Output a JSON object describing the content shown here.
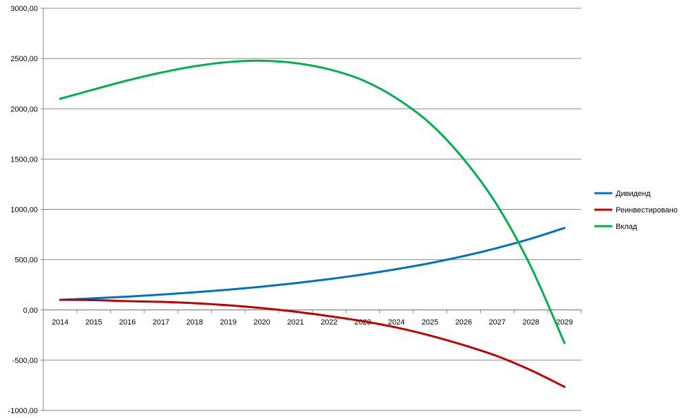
{
  "chart_data": {
    "type": "line",
    "x": [
      "2014",
      "2015",
      "2016",
      "2017",
      "2018",
      "2019",
      "2020",
      "2021",
      "2022",
      "2023",
      "2024",
      "2025",
      "2026",
      "2027",
      "2028",
      "2029"
    ],
    "ylim": [
      -1000,
      3000
    ],
    "yticks": [
      3000,
      2500,
      2000,
      1500,
      1000,
      500,
      0,
      -500,
      -1000
    ],
    "ytick_labels": [
      "3000,00",
      "2500,00",
      "2000,00",
      "1500,00",
      "1000,00",
      "500,00",
      "0,00",
      "-500,00",
      "-1000,00"
    ],
    "grid": true,
    "legend_position": "right",
    "series": [
      {
        "name": "Дивиденд",
        "color": "#0070C0",
        "values": [
          100,
          115,
          132,
          152,
          175,
          201,
          231,
          266,
          306,
          352,
          405,
          465,
          535,
          616,
          708,
          815
        ]
      },
      {
        "name": "Реинвестировано",
        "color": "#C00000",
        "values": [
          100,
          97,
          87,
          80,
          67,
          46,
          18,
          -18,
          -62,
          -112,
          -175,
          -255,
          -350,
          -460,
          -600,
          -765
        ]
      },
      {
        "name": "Вклад",
        "color": "#00B050",
        "values": [
          2100,
          2192,
          2282,
          2360,
          2423,
          2465,
          2478,
          2455,
          2393,
          2285,
          2105,
          1855,
          1500,
          1040,
          430,
          -330
        ]
      }
    ]
  }
}
